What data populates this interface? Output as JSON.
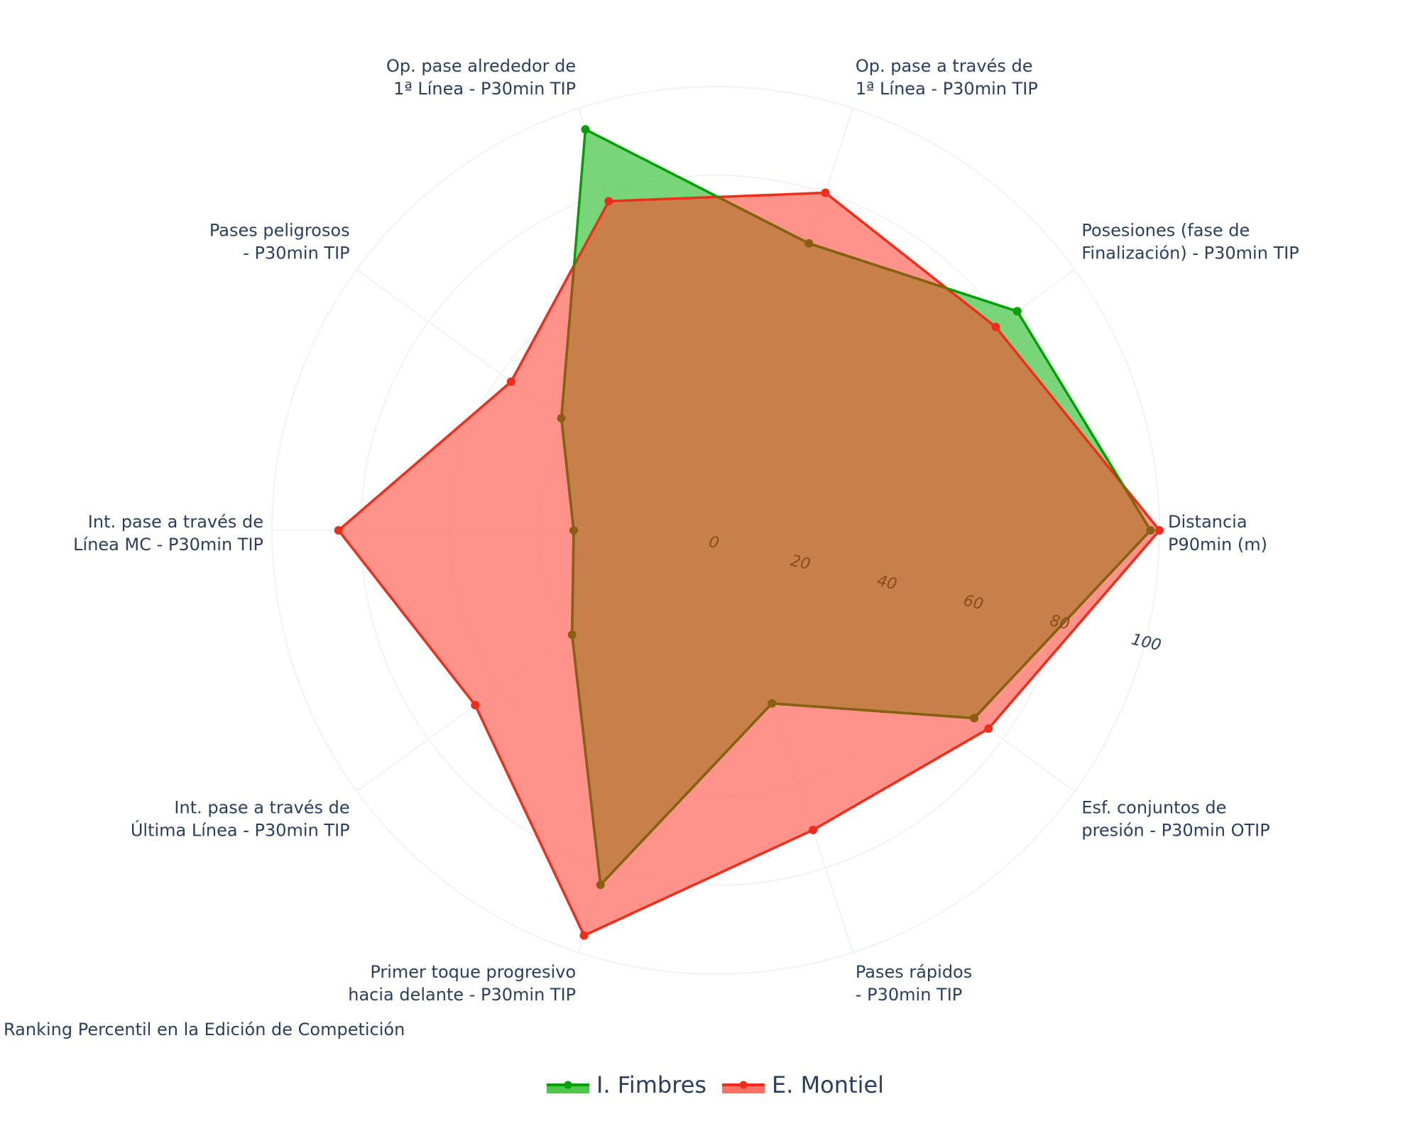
{
  "chart_data": {
    "type": "radar",
    "subtitle": "Ranking Percentil en la Edición de Competición",
    "radial_range": [
      0,
      100
    ],
    "radial_ticks": [
      0,
      20,
      40,
      60,
      80,
      100
    ],
    "radial_tick_labels": [
      "0",
      "20",
      "40",
      "60",
      "80",
      "100"
    ],
    "categories": [
      [
        "Distancia",
        "P90min (m)"
      ],
      [
        "Posesiones (fase de",
        "Finalización) - P30min TIP"
      ],
      [
        "Op. pase a través de",
        "1ª Línea - P30min TIP"
      ],
      [
        "Op. pase alrededor de",
        "1ª Línea - P30min TIP"
      ],
      [
        "Pases peligrosos",
        "- P30min TIP"
      ],
      [
        "Int. pase a través de",
        "Línea MC - P30min TIP"
      ],
      [
        "Int. pase a través de",
        "Última Línea - P30min TIP"
      ],
      [
        "Primer toque progresivo",
        "hacia delante - P30min TIP"
      ],
      [
        "Pases rápidos",
        "- P30min TIP"
      ],
      [
        "Esf. conjuntos de",
        "presión - P30min OTIP"
      ]
    ],
    "series": [
      {
        "name": "I. Fimbres",
        "line_color": "#00a000",
        "fill_color": "#4cc74c",
        "values": [
          98,
          84,
          68,
          95,
          43,
          32,
          40,
          84,
          41,
          72
        ]
      },
      {
        "name": "E. Montiel",
        "line_color": "#ef2d1a",
        "fill_color": "#ff6f63",
        "values": [
          100,
          78,
          80,
          78,
          57,
          85,
          67,
          96,
          71,
          76
        ]
      }
    ],
    "overlap_color": "#c8804a",
    "overlap_line_color": "#8a6010"
  }
}
